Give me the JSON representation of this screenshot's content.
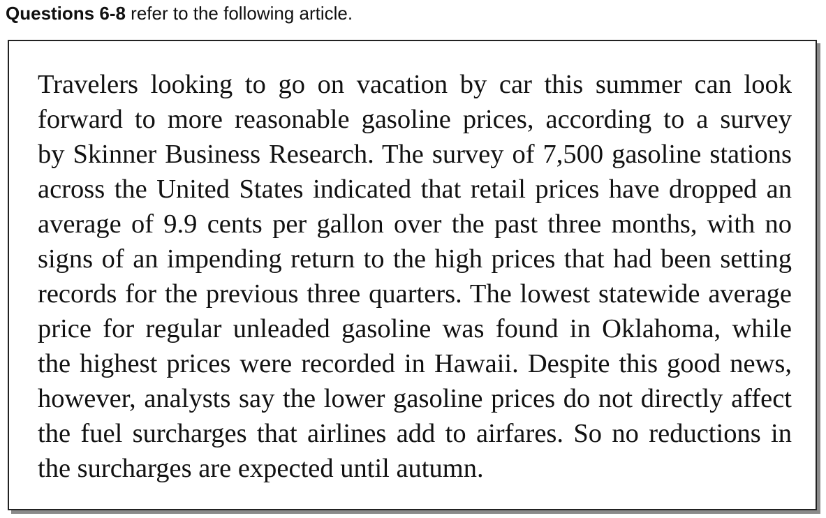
{
  "header": {
    "label_bold": "Questions 6-8",
    "label_rest": " refer to the following article."
  },
  "article": {
    "lines": [
      "Travelers looking to go on vacation by car this summer can look",
      "forward to more reasonable gasoline prices, according to a survey",
      "by Skinner Business Research. The survey of 7,500 gasoline stations",
      "across the United States indicated that retail prices have dropped an",
      "average of 9.9 cents per gallon over the past three months, with no",
      "signs of an impending return to the high prices that had been setting",
      "records for the previous three quarters. The lowest statewide average",
      "price for regular unleaded gasoline was found in Oklahoma, while",
      "the highest prices were recorded in Hawaii. Despite this good news,",
      "however, analysts say the lower gasoline prices do not directly affect",
      "the fuel surcharges that airlines add to airfares. So no reductions in",
      "the surcharges are expected until autumn."
    ]
  }
}
